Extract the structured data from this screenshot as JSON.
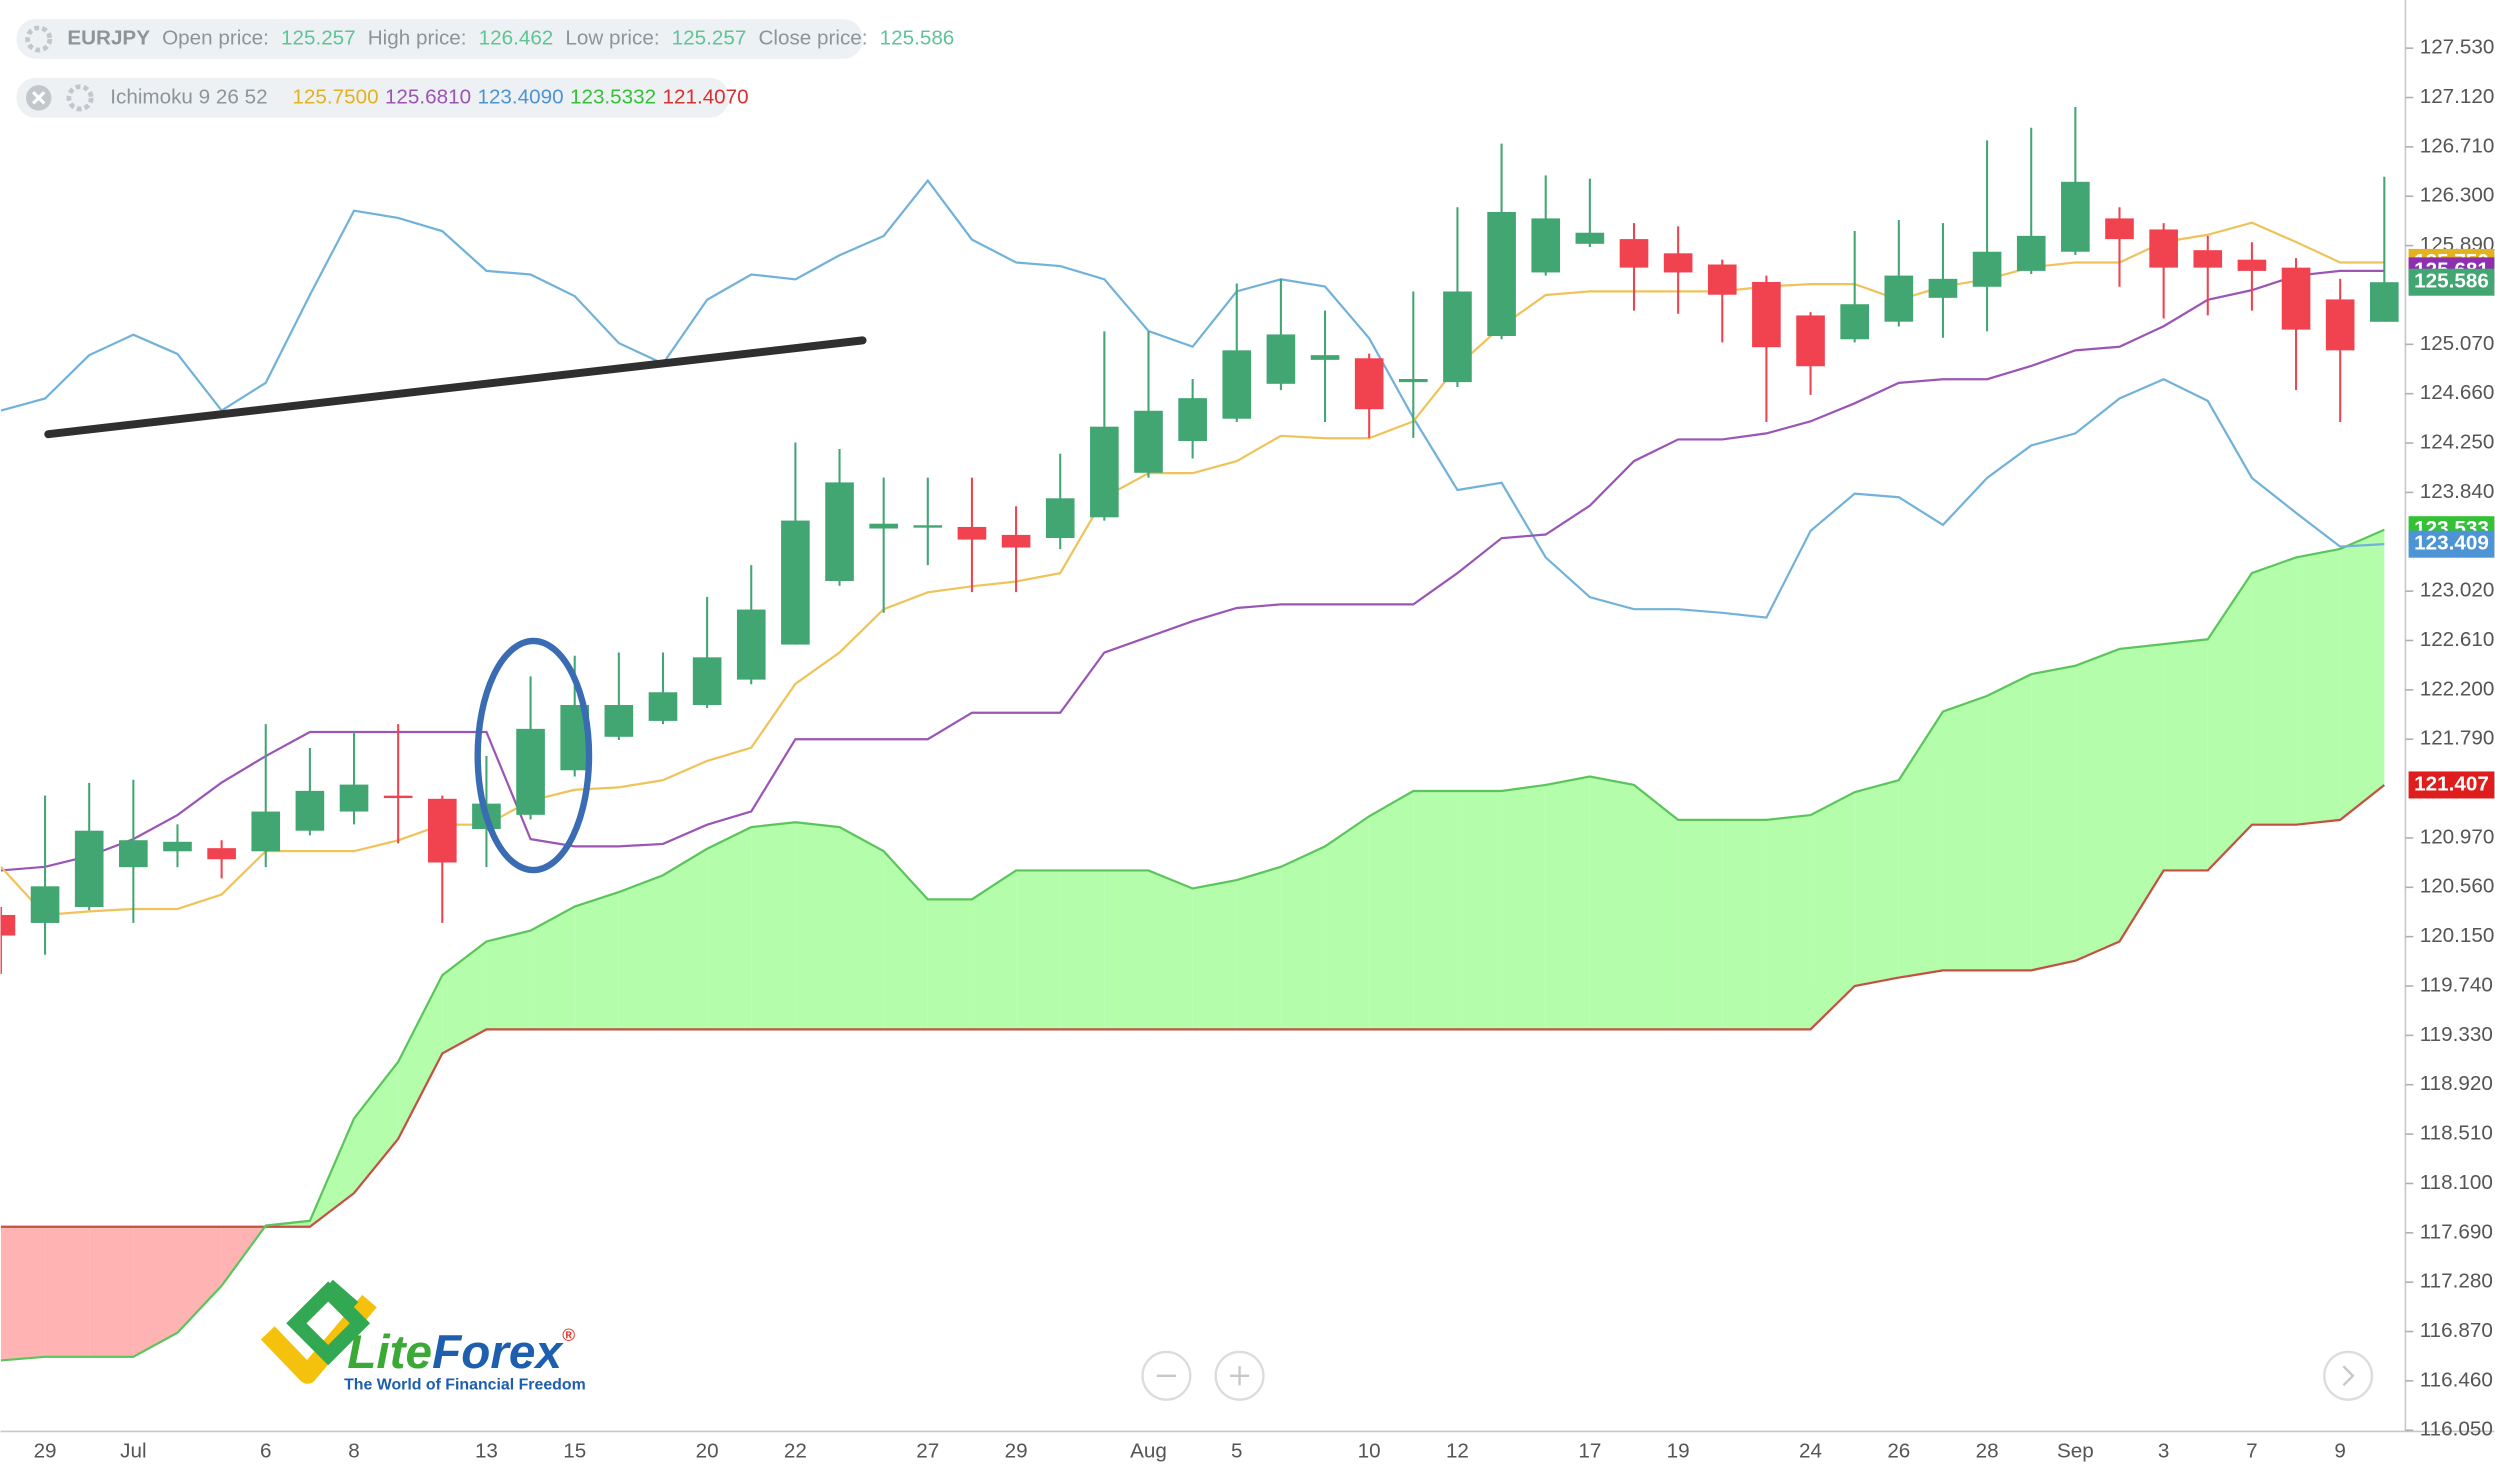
{
  "chart_data": {
    "type": "candlestick",
    "categories": [
      null,
      "29",
      null,
      "Jul",
      null,
      null,
      "6",
      null,
      "8",
      null,
      null,
      "13",
      null,
      "15",
      null,
      null,
      "20",
      null,
      "22",
      null,
      null,
      "27",
      null,
      "29",
      null,
      null,
      "Aug",
      null,
      "5",
      null,
      null,
      "10",
      null,
      "12",
      null,
      null,
      "17",
      null,
      "19",
      null,
      null,
      "24",
      null,
      "26",
      null,
      "28",
      null,
      "Sep",
      null,
      "3",
      null,
      "7",
      null,
      "9",
      null
    ],
    "candles": {
      "up_color": "#41a672",
      "down_color": "#f1434f",
      "open": [
        120.33,
        120.264,
        120.396,
        120.727,
        120.859,
        120.885,
        120.859,
        121.03,
        121.189,
        121.321,
        121.295,
        121.044,
        121.162,
        121.532,
        121.81,
        121.942,
        122.074,
        122.285,
        122.576,
        123.104,
        123.54,
        123.553,
        123.553,
        123.487,
        123.461,
        123.633,
        124.003,
        124.267,
        124.452,
        124.742,
        124.941,
        124.954,
        124.756,
        124.756,
        125.139,
        125.667,
        125.905,
        125.944,
        125.826,
        125.733,
        125.588,
        125.31,
        125.112,
        125.258,
        125.456,
        125.548,
        125.68,
        125.839,
        126.116,
        126.024,
        125.852,
        125.773,
        125.707,
        125.443,
        125.257
      ],
      "high": [
        120.396,
        121.321,
        121.427,
        121.453,
        121.083,
        120.951,
        121.915,
        121.717,
        121.849,
        121.915,
        121.321,
        121.651,
        122.312,
        122.483,
        122.51,
        122.51,
        122.972,
        123.236,
        124.254,
        124.201,
        123.963,
        123.963,
        123.963,
        123.725,
        124.161,
        125.178,
        125.178,
        124.782,
        125.575,
        125.614,
        125.35,
        124.993,
        125.509,
        126.209,
        126.737,
        126.473,
        126.446,
        126.077,
        126.05,
        125.773,
        125.641,
        125.337,
        126.011,
        126.103,
        126.077,
        126.764,
        126.869,
        127.041,
        126.209,
        126.077,
        125.971,
        125.918,
        125.786,
        125.614,
        126.462
      ],
      "low": [
        119.841,
        120.0,
        120.37,
        120.264,
        120.727,
        120.634,
        120.727,
        120.991,
        121.083,
        120.925,
        120.264,
        120.727,
        121.123,
        121.48,
        121.783,
        121.915,
        122.048,
        122.246,
        122.576,
        123.065,
        122.84,
        123.236,
        123.012,
        123.012,
        123.369,
        123.606,
        123.963,
        124.122,
        124.425,
        124.69,
        124.425,
        124.293,
        124.293,
        124.716,
        125.112,
        125.641,
        125.878,
        125.35,
        125.324,
        125.086,
        124.425,
        124.65,
        125.086,
        125.218,
        125.125,
        125.178,
        125.654,
        125.812,
        125.548,
        125.284,
        125.31,
        125.35,
        124.69,
        124.425,
        125.257
      ],
      "close": [
        120.159,
        120.568,
        121.03,
        120.951,
        120.938,
        120.793,
        121.189,
        121.361,
        121.413,
        121.308,
        120.766,
        121.255,
        121.876,
        122.074,
        122.074,
        122.18,
        122.47,
        122.867,
        123.606,
        123.923,
        123.58,
        123.567,
        123.448,
        123.382,
        123.791,
        124.386,
        124.518,
        124.623,
        125.02,
        125.152,
        124.98,
        124.531,
        124.782,
        125.509,
        126.169,
        126.116,
        125.997,
        125.707,
        125.667,
        125.482,
        125.046,
        124.888,
        125.403,
        125.641,
        125.614,
        125.839,
        125.971,
        126.42,
        125.944,
        125.707,
        125.707,
        125.68,
        125.192,
        125.02,
        125.586
      ]
    },
    "info": {
      "symbol": "EURJPY",
      "open_label": "Open price:",
      "high_label": "High price:",
      "low_label": "Low price:",
      "close_label": "Close price:",
      "value_color": "#5fc497"
    },
    "ichimoku": {
      "label": "Ichimoku 9 26 52",
      "cloud_up_color": "#b3fdab",
      "cloud_down_color": "#ffb3b3",
      "tenkan": {
        "color": "#eec35a",
        "legend_color": "#e3b21f",
        "axis_label": "125.750",
        "legend_value": "125.7500",
        "values": [
          120.73,
          120.33,
          120.36,
          120.38,
          120.38,
          120.5,
          120.86,
          120.86,
          120.86,
          120.95,
          121.08,
          121.08,
          121.28,
          121.37,
          121.39,
          121.45,
          121.61,
          121.72,
          122.25,
          122.51,
          122.87,
          123.01,
          123.06,
          123.1,
          123.17,
          123.8,
          124.0,
          124.0,
          124.1,
          124.31,
          124.29,
          124.29,
          124.43,
          124.89,
          125.22,
          125.48,
          125.51,
          125.51,
          125.51,
          125.51,
          125.55,
          125.57,
          125.57,
          125.44,
          125.55,
          125.61,
          125.71,
          125.75,
          125.75,
          125.92,
          125.98,
          126.08,
          125.92,
          125.75,
          125.75
        ]
      },
      "kijun": {
        "color": "#9b55b5",
        "legend_color": "#9b55b5",
        "axis_label": "125.681",
        "legend_value": "125.6810",
        "values": [
          120.7,
          120.73,
          120.82,
          120.96,
          121.16,
          121.43,
          121.65,
          121.85,
          121.85,
          121.85,
          121.85,
          121.85,
          120.96,
          120.9,
          120.9,
          120.92,
          121.08,
          121.19,
          121.79,
          121.79,
          121.79,
          121.79,
          122.01,
          122.01,
          122.01,
          122.51,
          122.64,
          122.77,
          122.88,
          122.91,
          122.91,
          122.91,
          122.91,
          123.17,
          123.46,
          123.49,
          123.73,
          124.1,
          124.28,
          124.28,
          124.33,
          124.43,
          124.58,
          124.75,
          124.78,
          124.78,
          124.89,
          125.02,
          125.05,
          125.22,
          125.44,
          125.52,
          125.64,
          125.68,
          125.68
        ]
      },
      "chikou": {
        "color": "#72b2da",
        "legend_color": "#4d94d4",
        "axis_label": "123.409",
        "legend_value": "123.4090",
        "values": [
          124.52,
          124.62,
          124.98,
          125.15,
          124.99,
          124.52,
          124.75,
          125.48,
          126.18,
          126.12,
          126.01,
          125.68,
          125.65,
          125.47,
          125.08,
          124.91,
          125.44,
          125.65,
          125.61,
          125.81,
          125.97,
          126.43,
          125.94,
          125.75,
          125.72,
          125.61,
          125.18,
          125.05,
          125.51,
          125.61,
          125.55,
          125.12,
          124.46,
          123.86,
          123.92,
          123.3,
          122.97,
          122.87,
          122.87,
          122.84,
          122.8,
          123.52,
          123.83,
          123.8,
          123.57,
          123.96,
          124.23,
          124.33,
          124.62,
          124.78,
          124.6,
          123.96,
          123.67,
          123.39,
          123.41
        ]
      },
      "span_a": {
        "color": "#5cc45c",
        "legend_color": "#35c135",
        "axis_label": "123.533",
        "legend_value": "123.5332",
        "values": [
          116.63,
          116.66,
          116.66,
          116.66,
          116.86,
          117.25,
          117.75,
          117.79,
          118.64,
          119.11,
          119.83,
          120.11,
          120.2,
          120.4,
          120.52,
          120.66,
          120.88,
          121.06,
          121.1,
          121.06,
          120.86,
          120.46,
          120.46,
          120.7,
          120.7,
          120.7,
          120.7,
          120.55,
          120.62,
          120.73,
          120.9,
          121.15,
          121.36,
          121.36,
          121.36,
          121.41,
          121.48,
          121.41,
          121.12,
          121.12,
          121.12,
          121.16,
          121.35,
          121.45,
          122.02,
          122.15,
          122.33,
          122.4,
          122.54,
          122.58,
          122.62,
          123.17,
          123.3,
          123.37,
          123.53
        ]
      },
      "span_b": {
        "color": "#c4513f",
        "legend_color": "#d93030",
        "axis_label": "121.407",
        "legend_value": "121.4070",
        "values": [
          117.74,
          117.74,
          117.74,
          117.74,
          117.74,
          117.74,
          117.74,
          117.74,
          118.02,
          118.47,
          119.18,
          119.38,
          119.38,
          119.38,
          119.38,
          119.38,
          119.38,
          119.38,
          119.38,
          119.38,
          119.38,
          119.38,
          119.38,
          119.38,
          119.38,
          119.38,
          119.38,
          119.38,
          119.38,
          119.38,
          119.38,
          119.38,
          119.38,
          119.38,
          119.38,
          119.38,
          119.38,
          119.38,
          119.38,
          119.38,
          119.38,
          119.38,
          119.74,
          119.81,
          119.87,
          119.87,
          119.87,
          119.95,
          120.11,
          120.7,
          120.7,
          121.08,
          121.08,
          121.12,
          121.41
        ]
      }
    },
    "ylim": [
      116.04,
      127.93
    ],
    "yticks": [
      {
        "value": 127.53,
        "label": "127.530"
      },
      {
        "value": 127.12,
        "label": "127.120"
      },
      {
        "value": 126.71,
        "label": "126.710"
      },
      {
        "value": 126.3,
        "label": "126.300"
      },
      {
        "value": 125.89,
        "label": "125.890"
      },
      {
        "value": 125.07,
        "label": "125.070"
      },
      {
        "value": 124.66,
        "label": "124.660"
      },
      {
        "value": 124.25,
        "label": "124.250"
      },
      {
        "value": 123.84,
        "label": "123.840"
      },
      {
        "value": 123.02,
        "label": "123.020"
      },
      {
        "value": 122.61,
        "label": "122.610"
      },
      {
        "value": 122.2,
        "label": "122.200"
      },
      {
        "value": 121.79,
        "label": "121.790"
      },
      {
        "value": 120.97,
        "label": "120.970"
      },
      {
        "value": 120.56,
        "label": "120.560"
      },
      {
        "value": 120.15,
        "label": "120.150"
      },
      {
        "value": 119.74,
        "label": "119.740"
      },
      {
        "value": 119.33,
        "label": "119.330"
      },
      {
        "value": 118.92,
        "label": "118.920"
      },
      {
        "value": 118.51,
        "label": "118.510"
      },
      {
        "value": 118.1,
        "label": "118.100"
      },
      {
        "value": 117.69,
        "label": "117.690"
      },
      {
        "value": 117.28,
        "label": "117.280"
      },
      {
        "value": 116.87,
        "label": "116.870"
      },
      {
        "value": 116.46,
        "label": "116.460"
      },
      {
        "value": 116.05,
        "label": "116.050"
      }
    ],
    "grid": false
  },
  "branding": {
    "logo_parts": [
      "Lite",
      "Forex",
      "®"
    ],
    "tagline": "The World of Financial Freedom"
  }
}
